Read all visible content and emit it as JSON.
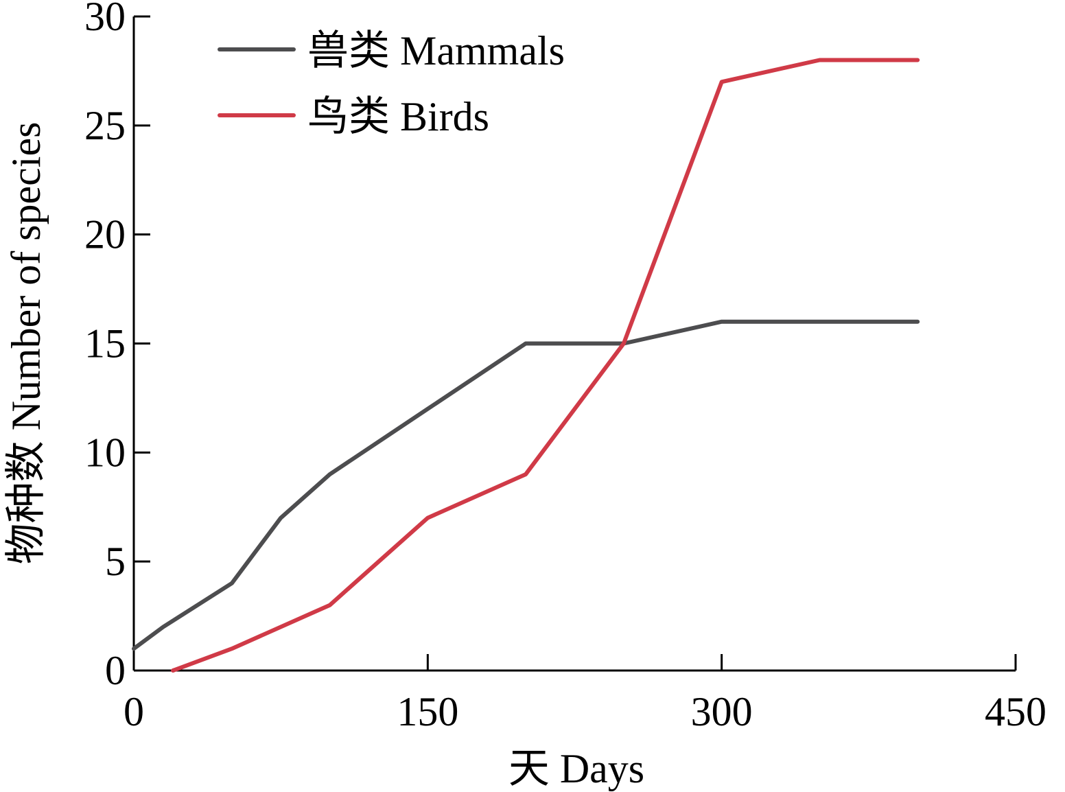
{
  "chart_data": {
    "type": "line",
    "xlabel": "天 Days",
    "ylabel": "物种数 Number of species",
    "xlim": [
      0,
      450
    ],
    "ylim": [
      0,
      30
    ],
    "xticks": [
      0,
      150,
      300,
      450
    ],
    "yticks": [
      0,
      5,
      10,
      15,
      20,
      25,
      30
    ],
    "grid": false,
    "legend_position": "top-left",
    "series": [
      {
        "name": "兽类 Mammals",
        "color": "#4d4d4f",
        "x": [
          0,
          15,
          50,
          75,
          100,
          150,
          200,
          250,
          300,
          350,
          400
        ],
        "y": [
          1,
          2,
          4,
          7,
          9,
          12,
          15,
          15,
          16,
          16,
          16
        ]
      },
      {
        "name": "鸟类 Birds",
        "color": "#d03a47",
        "x": [
          20,
          50,
          100,
          150,
          200,
          250,
          300,
          350,
          400
        ],
        "y": [
          0,
          1,
          3,
          7,
          9,
          15,
          27,
          28,
          28
        ]
      }
    ]
  }
}
